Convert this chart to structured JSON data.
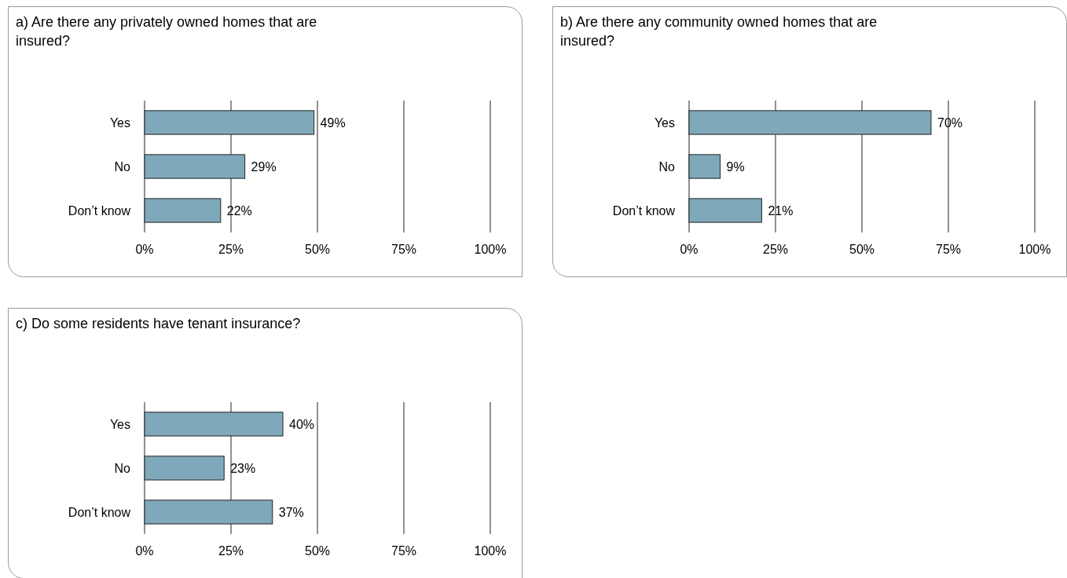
{
  "chart_data": [
    {
      "type": "bar",
      "orientation": "horizontal",
      "title": "a) Are there any privately owned homes that are insured?",
      "categories": [
        "Yes",
        "No",
        "Don’t know"
      ],
      "values": [
        49,
        29,
        22
      ],
      "value_labels": [
        "49%",
        "29%",
        "22%"
      ],
      "color": "#7fa9bb",
      "xlim": [
        0,
        100
      ],
      "xticks": [
        {
          "value": 0,
          "label": "0%"
        },
        {
          "value": 25,
          "label": "25%"
        },
        {
          "value": 50,
          "label": "50%"
        },
        {
          "value": 75,
          "label": "75%"
        },
        {
          "value": 100,
          "label": "100%"
        }
      ],
      "grid": "x"
    },
    {
      "type": "bar",
      "orientation": "horizontal",
      "title": "b) Are there any community owned homes that are insured?",
      "categories": [
        "Yes",
        "No",
        "Don’t know"
      ],
      "values": [
        70,
        9,
        21
      ],
      "value_labels": [
        "70%",
        "9%",
        "21%"
      ],
      "color": "#7fa9bb",
      "xlim": [
        0,
        100
      ],
      "xticks": [
        {
          "value": 0,
          "label": "0%"
        },
        {
          "value": 25,
          "label": "25%"
        },
        {
          "value": 50,
          "label": "50%"
        },
        {
          "value": 75,
          "label": "75%"
        },
        {
          "value": 100,
          "label": "100%"
        }
      ],
      "grid": "x"
    },
    {
      "type": "bar",
      "orientation": "horizontal",
      "title": "c) Do some residents have tenant insurance?",
      "categories": [
        "Yes",
        "No",
        "Don’t know"
      ],
      "values": [
        40,
        23,
        37
      ],
      "value_labels": [
        "40%",
        "23%",
        "37%"
      ],
      "color": "#7fa9bb",
      "xlim": [
        0,
        100
      ],
      "xticks": [
        {
          "value": 0,
          "label": "0%"
        },
        {
          "value": 25,
          "label": "25%"
        },
        {
          "value": 50,
          "label": "50%"
        },
        {
          "value": 75,
          "label": "75%"
        },
        {
          "value": 100,
          "label": "100%"
        }
      ],
      "grid": "x"
    }
  ]
}
